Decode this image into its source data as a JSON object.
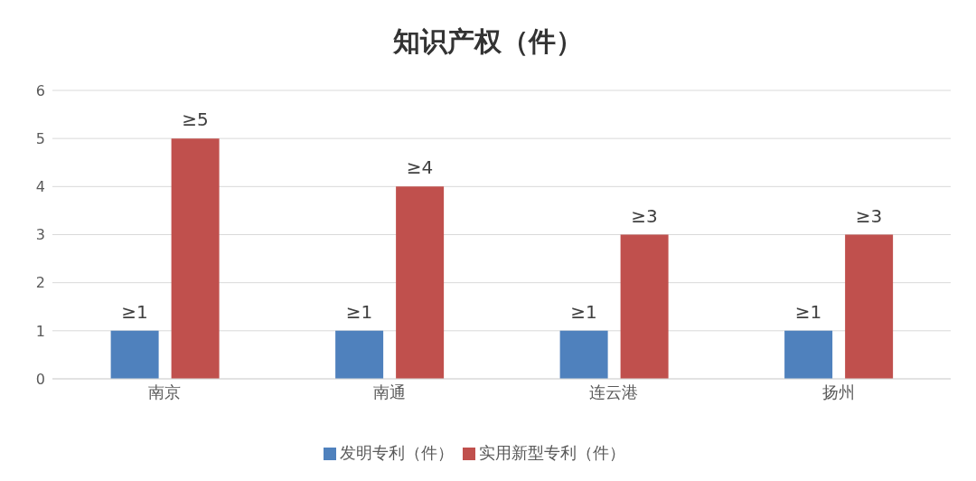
{
  "chart_data": {
    "type": "bar",
    "title": "知识产权（件）",
    "categories": [
      "南京",
      "南通",
      "连云港",
      "扬州"
    ],
    "series": [
      {
        "name": "发明专利（件）",
        "color": "#4f81bd",
        "values": [
          1,
          1,
          1,
          1
        ],
        "value_labels": [
          "≥1",
          "≥1",
          "≥1",
          "≥1"
        ]
      },
      {
        "name": "实用新型专利（件）",
        "color": "#c0504d",
        "values": [
          5,
          4,
          3,
          3
        ],
        "value_labels": [
          "≥5",
          "≥4",
          "≥3",
          "≥3"
        ]
      }
    ],
    "ylim": [
      0,
      6
    ],
    "yticks": [
      0,
      1,
      2,
      3,
      4,
      5,
      6
    ],
    "grid": "y",
    "legend": "bottom"
  }
}
